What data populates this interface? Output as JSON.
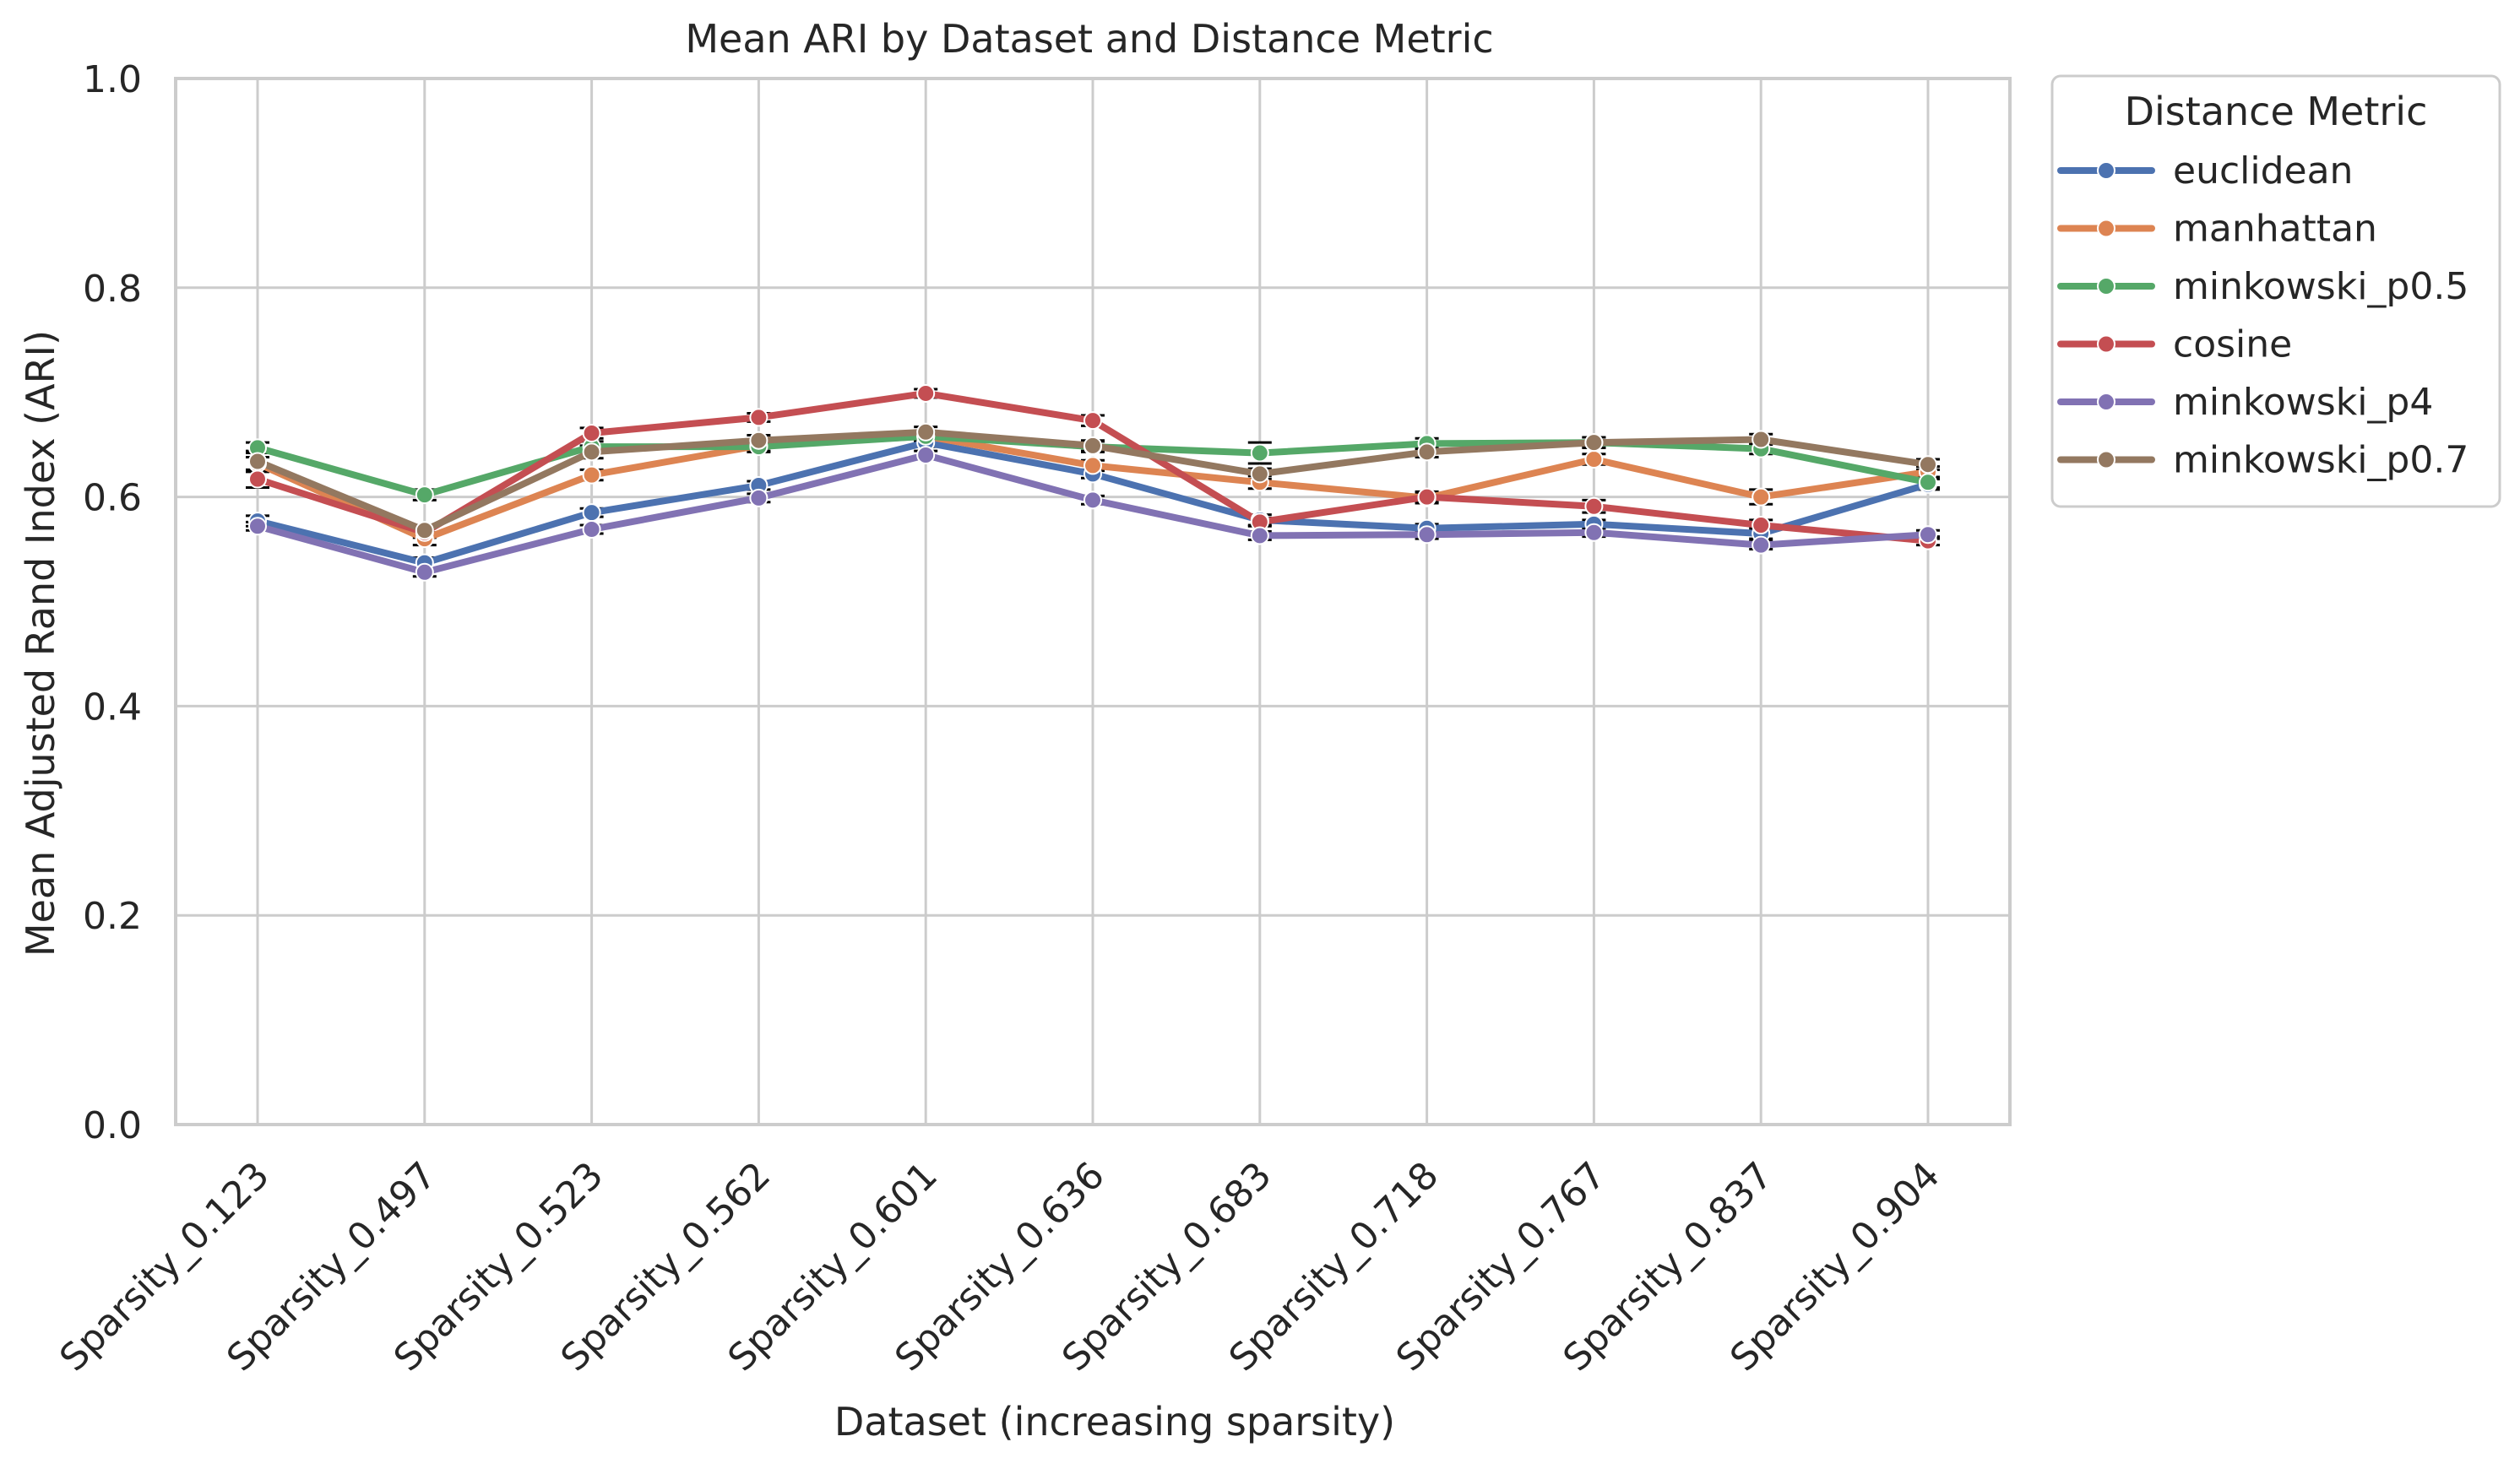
{
  "chart_data": {
    "type": "line",
    "title": "Mean ARI by Dataset and Distance Metric",
    "xlabel": "Dataset (increasing sparsity)",
    "ylabel": "Mean Adjusted Rand Index (ARI)",
    "ylim": [
      0,
      1
    ],
    "yticks": [
      "0.0",
      "0.2",
      "0.4",
      "0.6",
      "0.8",
      "1.0"
    ],
    "grid": true,
    "legend_title": "Distance Metric",
    "legend_position": "outside right, top",
    "categories": [
      "Sparsity_0.123",
      "Sparsity_0.497",
      "Sparsity_0.523",
      "Sparsity_0.562",
      "Sparsity_0.601",
      "Sparsity_0.636",
      "Sparsity_0.683",
      "Sparsity_0.718",
      "Sparsity_0.767",
      "Sparsity_0.837",
      "Sparsity_0.904"
    ],
    "series": [
      {
        "name": "euclidean",
        "color": "#4c72b0",
        "values": [
          0.577,
          0.537,
          0.585,
          0.611,
          0.652,
          0.622,
          0.578,
          0.57,
          0.574,
          0.565,
          0.612
        ],
        "errors": [
          0.005,
          0.005,
          0.004,
          0.004,
          0.004,
          0.004,
          0.005,
          0.004,
          0.004,
          0.005,
          0.005
        ]
      },
      {
        "name": "manhattan",
        "color": "#dd8452",
        "values": [
          0.632,
          0.56,
          0.621,
          0.649,
          0.658,
          0.63,
          0.614,
          0.599,
          0.636,
          0.6,
          0.624
        ],
        "errors": [
          0.006,
          0.006,
          0.005,
          0.005,
          0.005,
          0.005,
          0.006,
          0.005,
          0.005,
          0.007,
          0.005
        ]
      },
      {
        "name": "minkowski_p0.5",
        "color": "#55a868",
        "values": [
          0.647,
          0.602,
          0.648,
          0.648,
          0.658,
          0.648,
          0.642,
          0.651,
          0.652,
          0.646,
          0.614
        ],
        "errors": [
          0.005,
          0.005,
          0.005,
          0.005,
          0.005,
          0.005,
          0.01,
          0.005,
          0.005,
          0.005,
          0.005
        ]
      },
      {
        "name": "cosine",
        "color": "#c44e52",
        "values": [
          0.617,
          0.566,
          0.661,
          0.676,
          0.699,
          0.673,
          0.576,
          0.6,
          0.591,
          0.573,
          0.558
        ],
        "errors": [
          0.008,
          0.005,
          0.005,
          0.004,
          0.004,
          0.005,
          0.004,
          0.005,
          0.006,
          0.005,
          0.004
        ]
      },
      {
        "name": "minkowski_p4",
        "color": "#8172b3",
        "values": [
          0.572,
          0.528,
          0.569,
          0.599,
          0.64,
          0.597,
          0.563,
          0.564,
          0.566,
          0.554,
          0.564
        ],
        "errors": [
          0.004,
          0.004,
          0.004,
          0.004,
          0.004,
          0.004,
          0.004,
          0.004,
          0.004,
          0.004,
          0.004
        ]
      },
      {
        "name": "minkowski_p0.7",
        "color": "#937860",
        "values": [
          0.634,
          0.568,
          0.643,
          0.654,
          0.662,
          0.649,
          0.622,
          0.643,
          0.652,
          0.655,
          0.631
        ],
        "errors": [
          0.01,
          0.005,
          0.006,
          0.005,
          0.005,
          0.005,
          0.005,
          0.005,
          0.005,
          0.005,
          0.005
        ]
      }
    ]
  }
}
